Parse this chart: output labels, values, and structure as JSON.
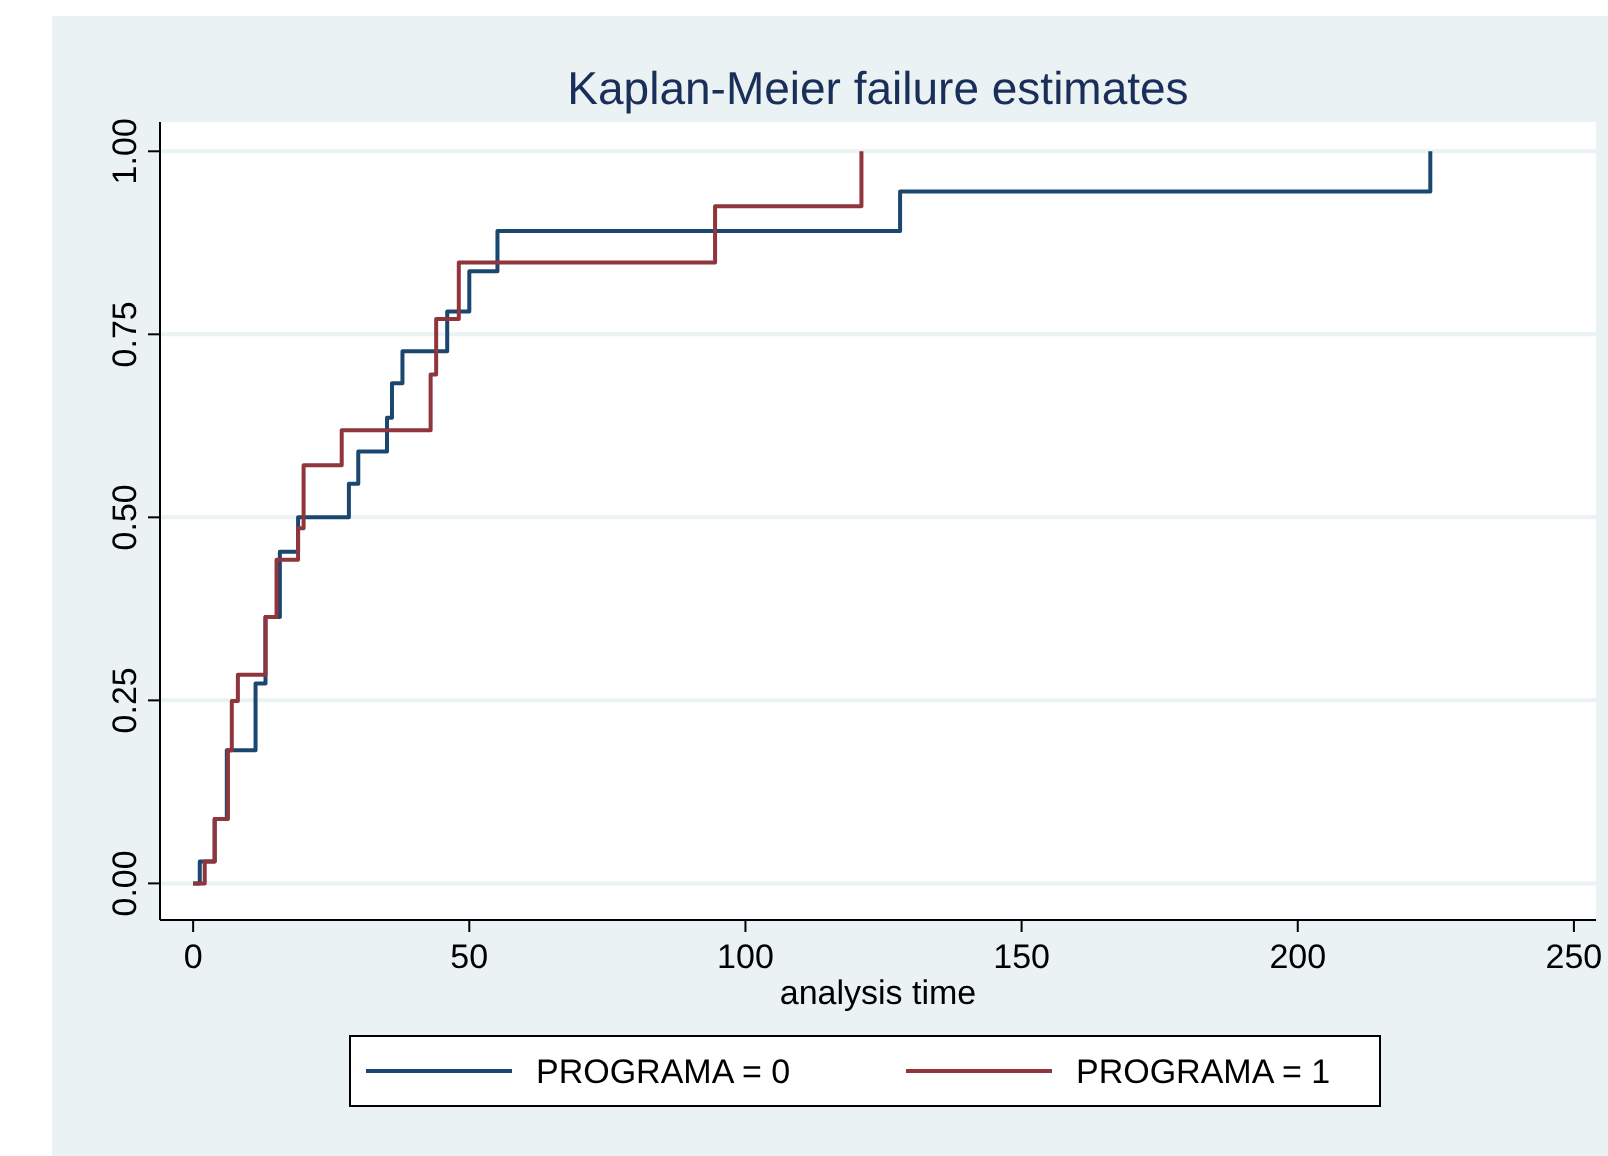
{
  "chart_data": {
    "type": "step",
    "title": "Kaplan-Meier failure estimates",
    "xlabel": "analysis time",
    "xlim": [
      -6,
      254
    ],
    "xticks": [
      0,
      50,
      100,
      150,
      200,
      250
    ],
    "ylim": [
      -0.05,
      1.04
    ],
    "yticks": [
      {
        "value": 0,
        "label": "0.00"
      },
      {
        "value": 0.25,
        "label": "0.25"
      },
      {
        "value": 0.5,
        "label": "0.50"
      },
      {
        "value": 0.75,
        "label": "0.75"
      },
      {
        "value": 1,
        "label": "1.00"
      }
    ],
    "grid": "y",
    "legend": "bottom",
    "marker": "none",
    "line_style": "solid",
    "series": [
      {
        "name": "PROGRAMA = 0",
        "color": "#1a476f",
        "x": [
          0,
          1.2,
          3.9,
          6.1,
          11.3,
          13.1,
          15.7,
          19,
          28.2,
          29.9,
          35.1,
          36,
          37.9,
          46,
          50,
          55.1,
          128,
          224
        ],
        "values": [
          0,
          0.03,
          0.088,
          0.182,
          0.273,
          0.364,
          0.453,
          0.5,
          0.546,
          0.59,
          0.636,
          0.683,
          0.727,
          0.781,
          0.836,
          0.891,
          0.945,
          1
        ]
      },
      {
        "name": "PROGRAMA = 1",
        "color": "#90353b",
        "x": [
          0,
          2.1,
          3.9,
          6.3,
          7,
          8.1,
          13.1,
          15.1,
          19,
          20,
          26.9,
          43,
          44,
          48.1,
          94.5,
          121
        ],
        "values": [
          0,
          0.03,
          0.088,
          0.182,
          0.249,
          0.285,
          0.364,
          0.442,
          0.485,
          0.571,
          0.619,
          0.695,
          0.771,
          0.848,
          0.925,
          1
        ]
      }
    ]
  }
}
